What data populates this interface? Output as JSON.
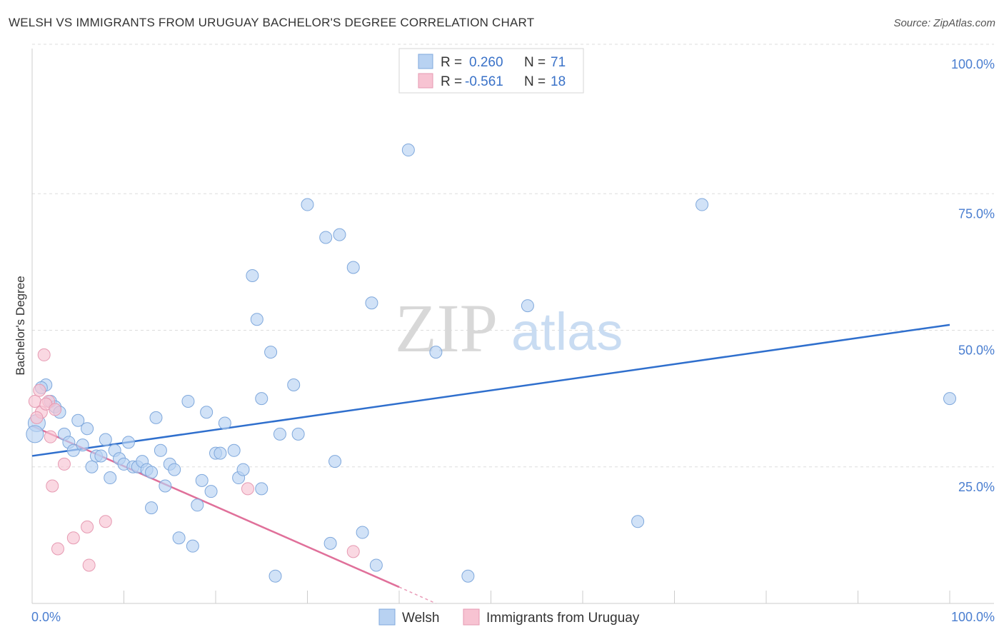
{
  "title": "WELSH VS IMMIGRANTS FROM URUGUAY BACHELOR'S DEGREE CORRELATION CHART",
  "source": "Source: ZipAtlas.com",
  "watermark": {
    "zip": "ZIP",
    "atlas": "atlas"
  },
  "colors": {
    "welsh_fill": "#b8d2f2",
    "welsh_stroke": "#7fa8dc",
    "welsh_line": "#2f6fcd",
    "uruguay_fill": "#f7c3d2",
    "uruguay_stroke": "#e69ab2",
    "uruguay_line": "#e0709a",
    "tick_text": "#4a7ed0",
    "grid": "#dddddd"
  },
  "legend": {
    "rows": [
      {
        "r_label": "R =",
        "r_value": "0.260",
        "n_label": "N =",
        "n_value": "71"
      },
      {
        "r_label": "R =",
        "r_value": "-0.561",
        "n_label": "N =",
        "n_value": "18"
      }
    ]
  },
  "chart_data": {
    "type": "scatter",
    "title": "WELSH VS IMMIGRANTS FROM URUGUAY BACHELOR'S DEGREE CORRELATION CHART",
    "xlabel": "",
    "ylabel": "Bachelor's Degree",
    "xlim": [
      0,
      100
    ],
    "ylim": [
      0,
      100
    ],
    "x_tick_labels": [
      "0.0%",
      "100.0%"
    ],
    "y_ticks": [
      25,
      50,
      75,
      100
    ],
    "y_tick_labels": [
      "25.0%",
      "50.0%",
      "75.0%",
      "100.0%"
    ],
    "grid": true,
    "legend_position": "top-center",
    "series": [
      {
        "name": "Welsh",
        "points": [
          [
            0.5,
            33
          ],
          [
            1.5,
            40
          ],
          [
            2,
            37
          ],
          [
            2.5,
            36
          ],
          [
            3,
            35
          ],
          [
            3.5,
            31
          ],
          [
            4,
            29.5
          ],
          [
            4.5,
            28
          ],
          [
            5,
            33.5
          ],
          [
            5.5,
            29
          ],
          [
            6,
            32
          ],
          [
            6.5,
            25
          ],
          [
            7,
            27
          ],
          [
            7.5,
            27
          ],
          [
            8,
            30
          ],
          [
            8.5,
            23
          ],
          [
            9,
            28
          ],
          [
            9.5,
            26.5
          ],
          [
            10,
            25.5
          ],
          [
            10.5,
            29.5
          ],
          [
            11,
            25
          ],
          [
            11.5,
            25
          ],
          [
            12,
            26
          ],
          [
            12.5,
            24.5
          ],
          [
            13,
            24
          ],
          [
            13,
            17.5
          ],
          [
            13.5,
            34
          ],
          [
            14,
            28
          ],
          [
            14.5,
            21.5
          ],
          [
            15,
            25.5
          ],
          [
            15.5,
            24.5
          ],
          [
            16,
            12
          ],
          [
            17,
            37
          ],
          [
            17.5,
            10.5
          ],
          [
            18,
            18
          ],
          [
            18.5,
            22.5
          ],
          [
            19,
            35
          ],
          [
            19.5,
            20.5
          ],
          [
            20,
            27.5
          ],
          [
            20.5,
            27.5
          ],
          [
            21,
            33
          ],
          [
            22,
            28
          ],
          [
            22.5,
            23
          ],
          [
            23,
            24.5
          ],
          [
            24,
            60
          ],
          [
            24.5,
            52
          ],
          [
            25,
            21
          ],
          [
            25,
            37.5
          ],
          [
            26,
            46
          ],
          [
            26.5,
            5
          ],
          [
            27,
            31
          ],
          [
            28.5,
            40
          ],
          [
            29,
            31
          ],
          [
            30,
            73
          ],
          [
            32,
            67
          ],
          [
            32.5,
            11
          ],
          [
            33,
            26
          ],
          [
            33.5,
            67.5
          ],
          [
            35,
            61.5
          ],
          [
            36,
            13
          ],
          [
            37,
            55
          ],
          [
            37.5,
            7
          ],
          [
            41,
            83
          ],
          [
            44,
            46
          ],
          [
            47.5,
            5
          ],
          [
            54,
            54.5
          ],
          [
            66,
            15
          ],
          [
            73,
            73
          ],
          [
            100,
            37.5
          ],
          [
            1,
            39.5
          ],
          [
            0.3,
            31
          ]
        ]
      },
      {
        "name": "Immigrants from Uruguay",
        "points": [
          [
            0.3,
            37
          ],
          [
            0.8,
            39
          ],
          [
            1,
            35
          ],
          [
            1.3,
            45.5
          ],
          [
            1.8,
            37
          ],
          [
            2,
            30.5
          ],
          [
            2.2,
            21.5
          ],
          [
            2.8,
            10
          ],
          [
            3.5,
            25.5
          ],
          [
            4.5,
            12
          ],
          [
            6,
            14
          ],
          [
            6.2,
            7
          ],
          [
            8,
            15
          ],
          [
            23.5,
            21
          ],
          [
            35,
            9.5
          ],
          [
            0.5,
            34
          ],
          [
            1.5,
            36.5
          ],
          [
            2.5,
            35.5
          ]
        ]
      }
    ],
    "trend_lines": [
      {
        "series": "Welsh",
        "x": [
          0,
          100
        ],
        "y": [
          27,
          51
        ],
        "dashed_extension": false
      },
      {
        "series": "Immigrants from Uruguay",
        "x": [
          0,
          40
        ],
        "y": [
          32.5,
          3
        ],
        "dashed_to": [
          44,
          0
        ]
      }
    ]
  },
  "bottom_legend": [
    {
      "label": "Welsh"
    },
    {
      "label": "Immigrants from Uruguay"
    }
  ]
}
